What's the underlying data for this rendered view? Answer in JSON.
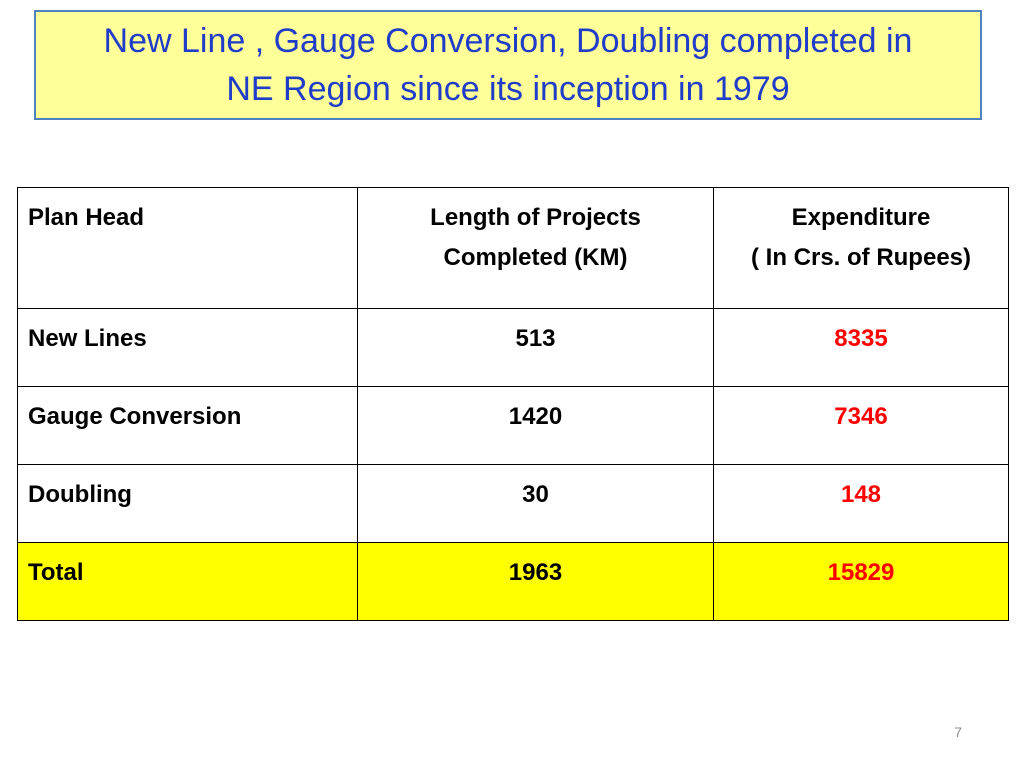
{
  "title": {
    "line1": "New Line , Gauge Conversion, Doubling completed in",
    "line2": "NE Region since its inception in 1979"
  },
  "table": {
    "headers": {
      "plan_head": "Plan Head",
      "length_line1": "Length of Projects",
      "length_line2": "Completed (KM)",
      "expenditure_line1": "Expenditure",
      "expenditure_line2": "( In Crs. of Rupees)"
    },
    "rows": [
      {
        "plan_head": "New Lines",
        "length": "513",
        "expenditure": "8335"
      },
      {
        "plan_head": "Gauge Conversion",
        "length": "1420",
        "expenditure": "7346"
      },
      {
        "plan_head": "Doubling",
        "length": "30",
        "expenditure": "148"
      }
    ],
    "total": {
      "plan_head": "Total",
      "length": "1963",
      "expenditure": "15829"
    }
  },
  "page_number": "7",
  "colors": {
    "title_text": "#1f3dc8",
    "title_background": "#ffff99",
    "title_border": "#4f81bd",
    "expenditure_values": "#ff0000",
    "total_row_background": "#ffff00"
  }
}
